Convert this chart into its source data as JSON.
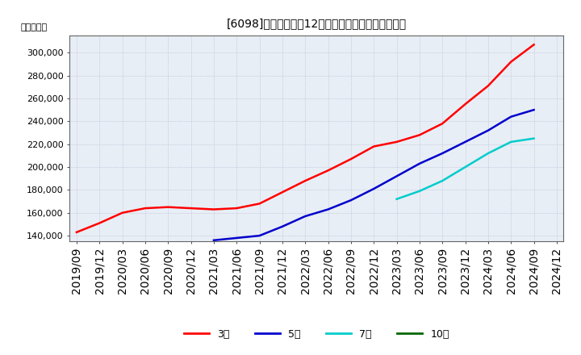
{
  "title_display": "[6098]　当期純利益12か月移動合計の平均値の推移",
  "ylabel": "（百万円）",
  "background_color": "#ffffff",
  "plot_bg_color": "#e8eef5",
  "grid_color": "#aaaacc",
  "ylim": [
    135000,
    315000
  ],
  "yticks": [
    140000,
    160000,
    180000,
    200000,
    220000,
    240000,
    260000,
    280000,
    300000
  ],
  "x_labels": [
    "2019/09",
    "2019/12",
    "2020/03",
    "2020/06",
    "2020/09",
    "2020/12",
    "2021/03",
    "2021/06",
    "2021/09",
    "2021/12",
    "2022/03",
    "2022/06",
    "2022/09",
    "2022/12",
    "2023/03",
    "2023/06",
    "2023/09",
    "2023/12",
    "2024/03",
    "2024/06",
    "2024/09",
    "2024/12"
  ],
  "series": {
    "3yr": {
      "color": "#ff0000",
      "label": "3年",
      "x": [
        0,
        1,
        2,
        3,
        4,
        5,
        6,
        7,
        8,
        9,
        10,
        11,
        12,
        13,
        14,
        15,
        16,
        17,
        18,
        19,
        20
      ],
      "y": [
        143000,
        151000,
        160000,
        164000,
        165000,
        164000,
        163000,
        164000,
        168000,
        178000,
        188000,
        197000,
        207000,
        218000,
        222000,
        228000,
        238000,
        255000,
        271000,
        292000,
        307000
      ]
    },
    "5yr": {
      "color": "#0000cc",
      "label": "5年",
      "x": [
        6,
        7,
        8,
        9,
        10,
        11,
        12,
        13,
        14,
        15,
        16,
        17,
        18,
        19,
        20
      ],
      "y": [
        136000,
        138000,
        140000,
        148000,
        157000,
        163000,
        171000,
        181000,
        192000,
        203000,
        212000,
        222000,
        232000,
        244000,
        250000
      ]
    },
    "7yr": {
      "color": "#00cccc",
      "label": "7年",
      "x": [
        14,
        15,
        16,
        17,
        18,
        19,
        20
      ],
      "y": [
        172000,
        179000,
        188000,
        200000,
        212000,
        222000,
        225000
      ]
    },
    "10yr": {
      "color": "#006600",
      "label": "10年",
      "x": [],
      "y": []
    }
  },
  "legend_labels": [
    "3年",
    "5年",
    "7年",
    "10年"
  ],
  "legend_colors": [
    "#ff0000",
    "#0000cc",
    "#00cccc",
    "#006600"
  ]
}
